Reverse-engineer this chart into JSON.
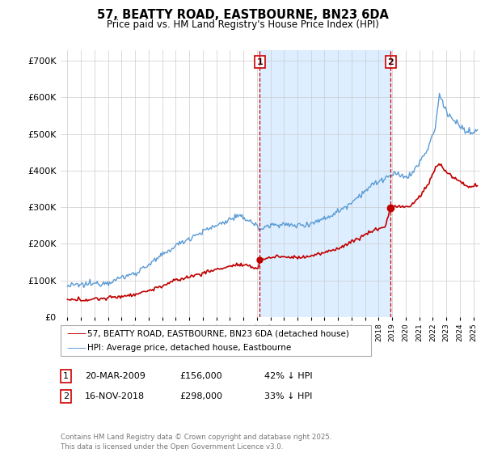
{
  "title": "57, BEATTY ROAD, EASTBOURNE, BN23 6DA",
  "subtitle": "Price paid vs. HM Land Registry's House Price Index (HPI)",
  "hpi_label": "HPI: Average price, detached house, Eastbourne",
  "property_label": "57, BEATTY ROAD, EASTBOURNE, BN23 6DA (detached house)",
  "hpi_color": "#5b9bd5",
  "property_color": "#c00000",
  "marker1_date": "20-MAR-2009",
  "marker1_price": 156000,
  "marker1_pct": "42% ↓ HPI",
  "marker2_date": "16-NOV-2018",
  "marker2_price": 298000,
  "marker2_pct": "33% ↓ HPI",
  "ylim": [
    0,
    730000
  ],
  "xlim_start": 1994.5,
  "xlim_end": 2025.5,
  "footer": "Contains HM Land Registry data © Crown copyright and database right 2025.\nThis data is licensed under the Open Government Licence v3.0.",
  "vline1_x": 2009.22,
  "vline2_x": 2018.88,
  "shade_color": "#dceeff",
  "grid_color": "#cccccc",
  "background_color": "#ffffff"
}
